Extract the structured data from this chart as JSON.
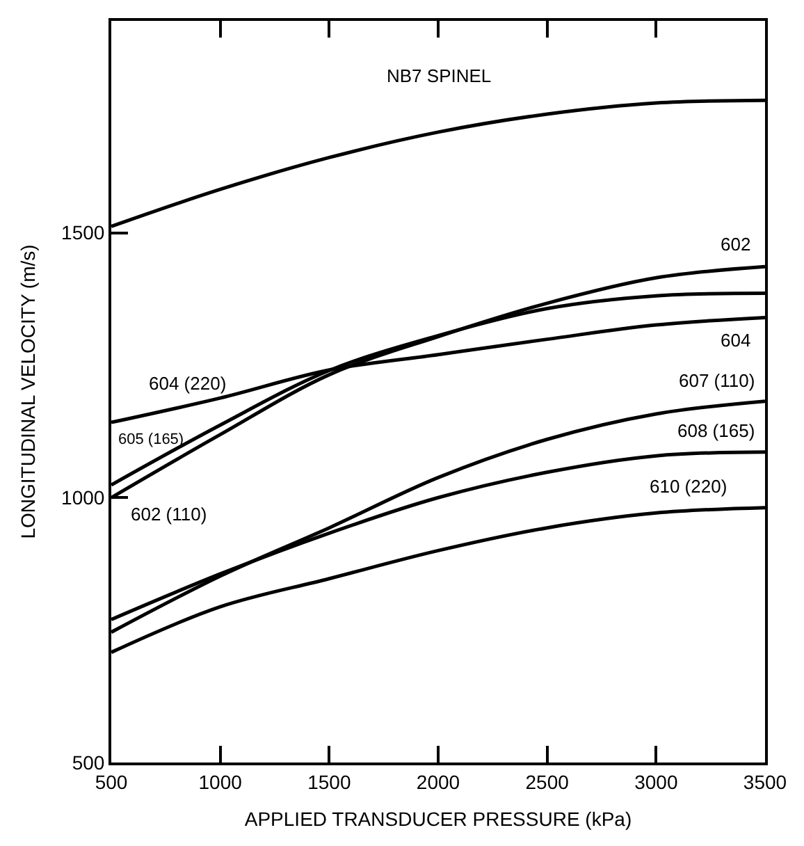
{
  "chart_data": {
    "type": "line",
    "xlabel": "APPLIED TRANSDUCER PRESSURE (kPa)",
    "ylabel": "LONGITUDINAL VELOCITY (m/s)",
    "x": [
      500,
      1000,
      1500,
      2000,
      2500,
      3000,
      3500
    ],
    "series": [
      {
        "name": "NB7 SPINEL",
        "color": "#000000",
        "values": [
          1512,
          1582,
          1642,
          1690,
          1724,
          1745,
          1750
        ]
      },
      {
        "name": "604 (220)",
        "color": "#000000",
        "values": [
          1142,
          1188,
          1241,
          1270,
          1299,
          1326,
          1340
        ]
      },
      {
        "name": "605 (165)",
        "color": "#000000",
        "values": [
          1024,
          1137,
          1240,
          1306,
          1357,
          1381,
          1386
        ]
      },
      {
        "name": "602 (110)",
        "color": "#000000",
        "values": [
          1000,
          1119,
          1232,
          1304,
          1367,
          1415,
          1436
        ]
      },
      {
        "name": "607 (110)",
        "color": "#000000",
        "values": [
          746,
          852,
          943,
          1038,
          1110,
          1158,
          1182
        ]
      },
      {
        "name": "608 (165)",
        "color": "#000000",
        "values": [
          770,
          856,
          933,
          1000,
          1048,
          1079,
          1086
        ]
      },
      {
        "name": "610 (220)",
        "color": "#000000",
        "values": [
          708,
          794,
          847,
          900,
          943,
          971,
          981
        ]
      }
    ],
    "annotations": [
      {
        "text": "602",
        "x": 3500,
        "y": 1436
      },
      {
        "text": "604",
        "x": 3500,
        "y": 1340
      }
    ],
    "xlim": [
      500,
      3500
    ],
    "ylim": [
      500,
      1900
    ],
    "xticks": [
      500,
      1000,
      1500,
      2000,
      2500,
      3000,
      3500
    ],
    "yticks": [
      500,
      1000,
      1500
    ],
    "legend": false,
    "marker": "none",
    "line_style": "solid"
  }
}
